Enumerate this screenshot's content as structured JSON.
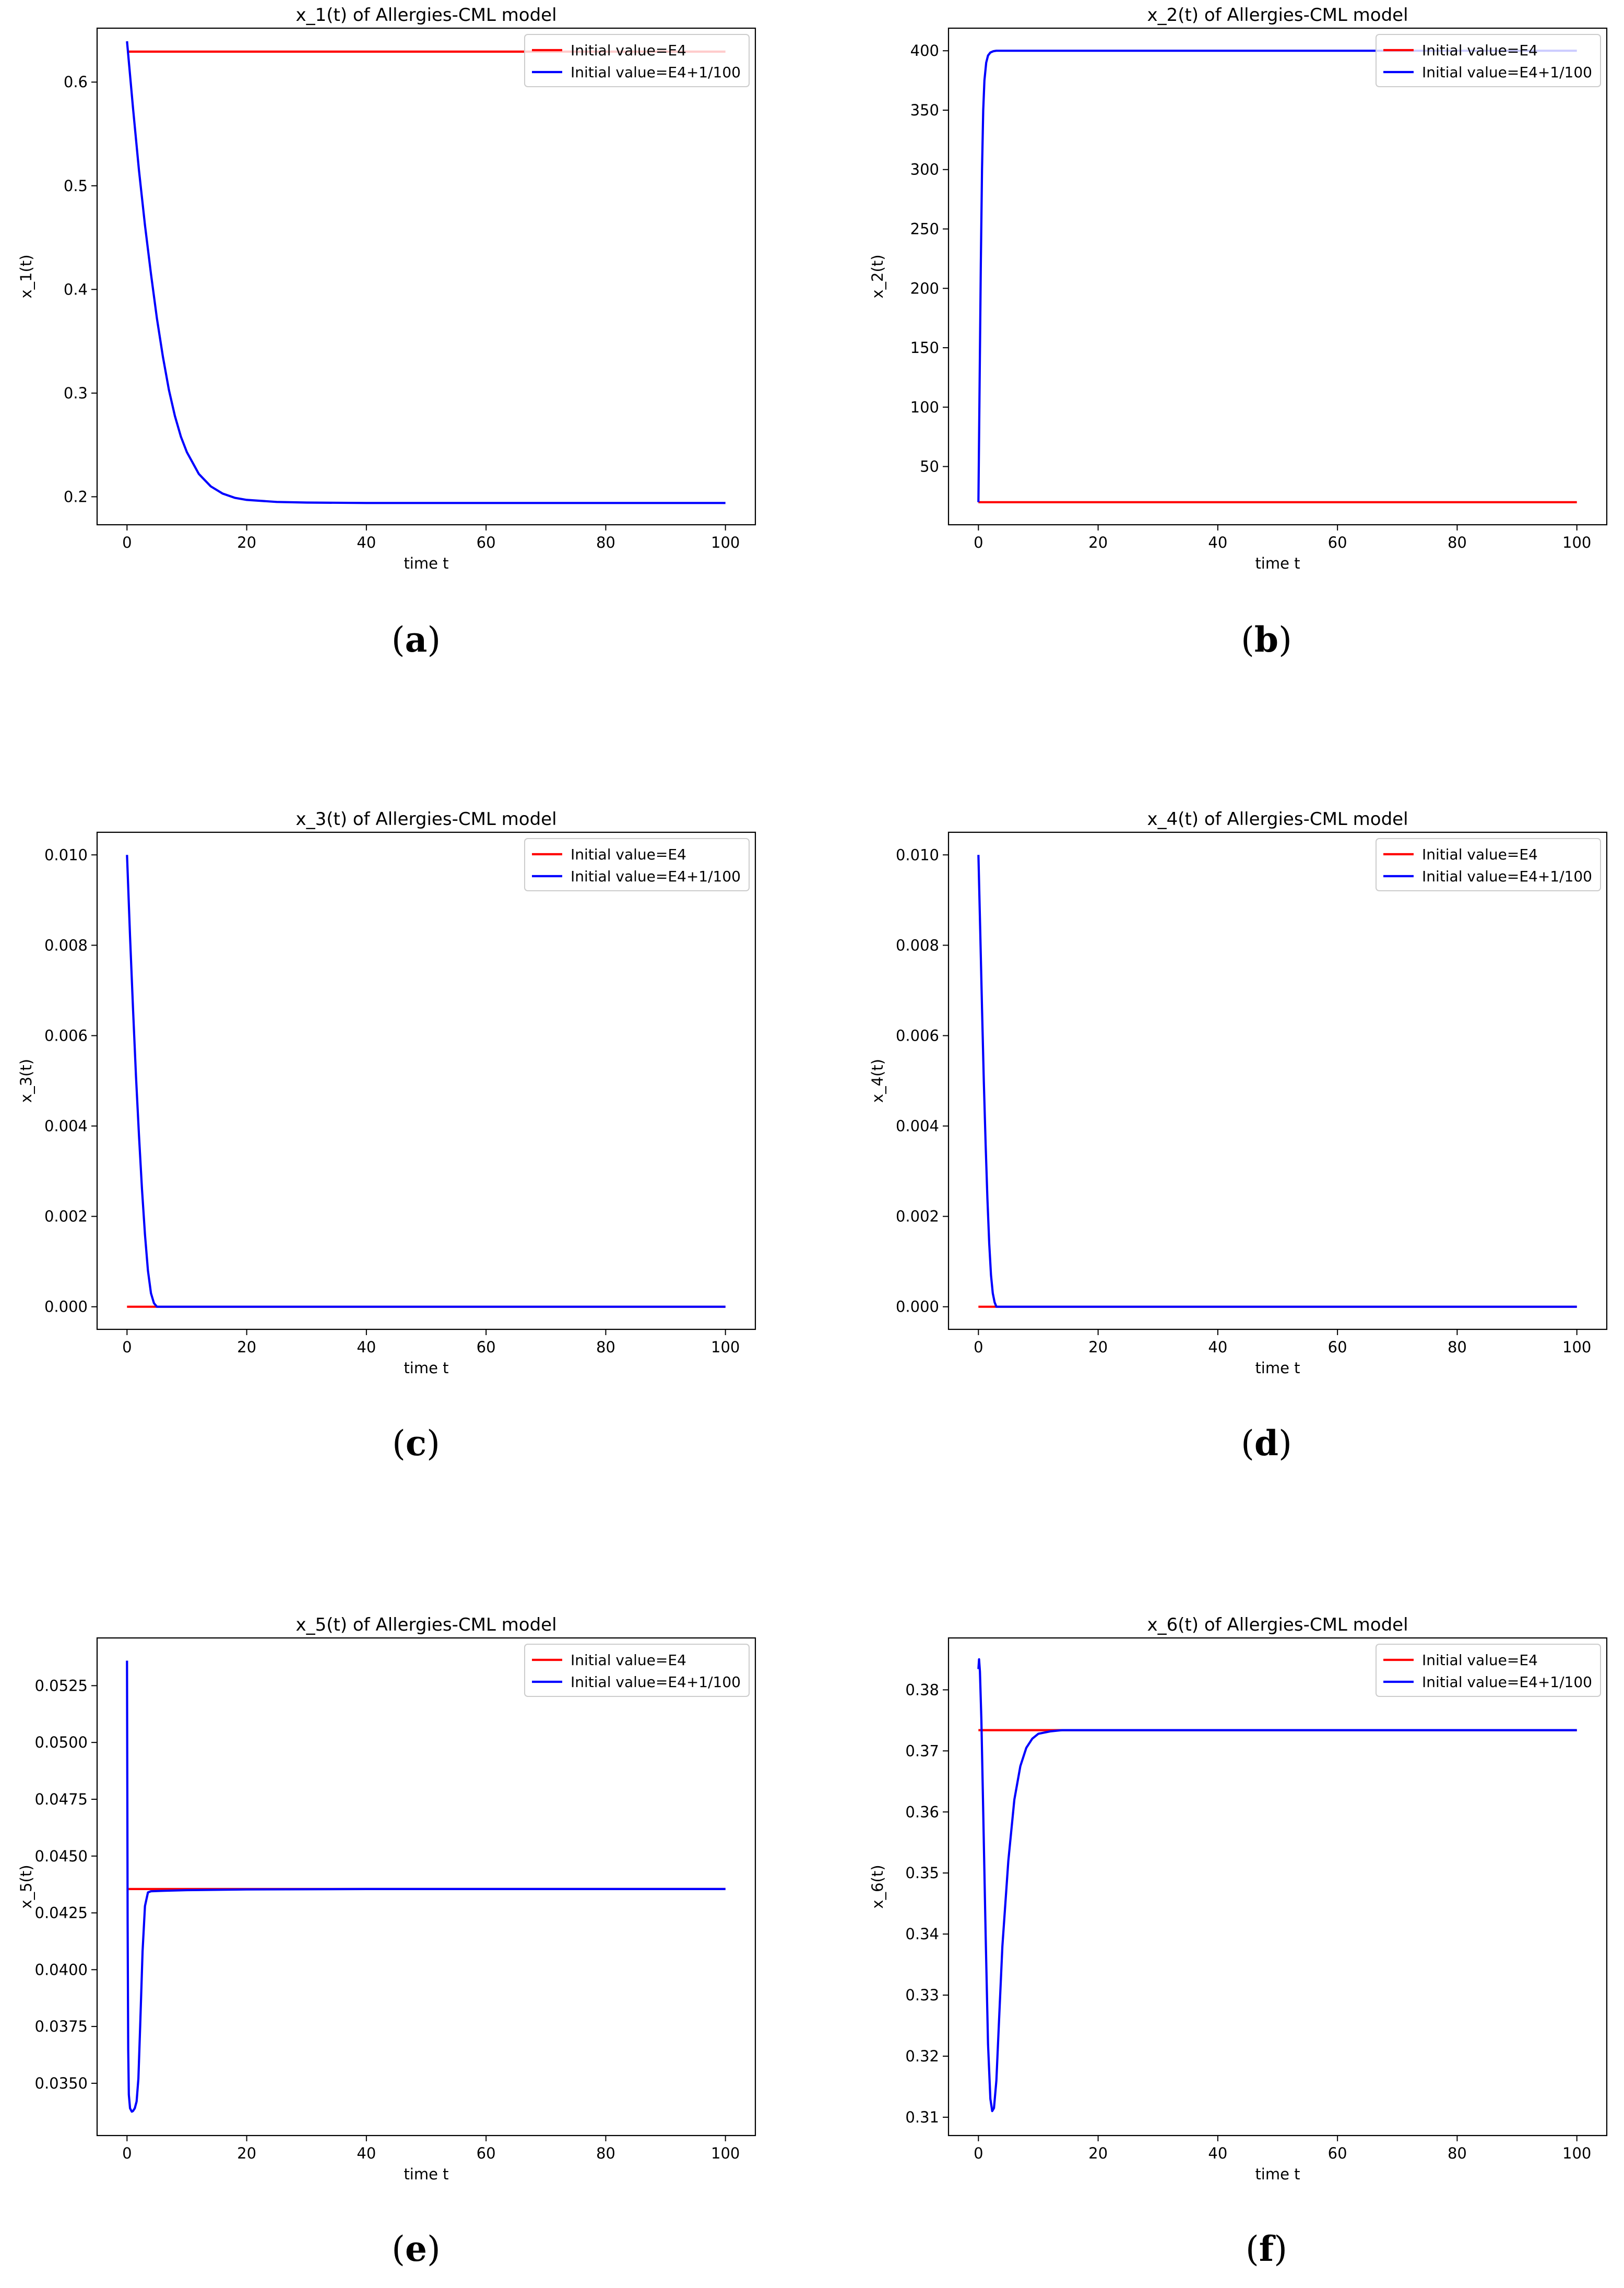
{
  "chart_data": [
    {
      "type": "line",
      "panel": "a",
      "title": "x_1(t) of Allergies-CML model",
      "xlabel": "time t",
      "ylabel": "x_1(t)",
      "xlim": [
        -5,
        105
      ],
      "ylim": [
        0.173,
        0.652
      ],
      "xticks": [
        0,
        20,
        40,
        60,
        80,
        100
      ],
      "yticks": [
        0.2,
        0.3,
        0.4,
        0.5,
        0.6
      ],
      "ytick_labels": [
        "0.2",
        "0.3",
        "0.4",
        "0.5",
        "0.6"
      ],
      "grid": false,
      "legend_position": "top-right",
      "series": [
        {
          "name": "Initial value=E4",
          "color": "#ff0000",
          "x": [
            0,
            100
          ],
          "y": [
            0.6294,
            0.6294
          ]
        },
        {
          "name": "Initial value=E4+1/100",
          "color": "#0000ff",
          "x": [
            0,
            1,
            2,
            3,
            4,
            5,
            6,
            7,
            8,
            9,
            10,
            12,
            14,
            16,
            18,
            20,
            25,
            30,
            40,
            60,
            80,
            100
          ],
          "y": [
            0.6394,
            0.575,
            0.515,
            0.462,
            0.415,
            0.372,
            0.335,
            0.303,
            0.278,
            0.258,
            0.243,
            0.222,
            0.21,
            0.203,
            0.199,
            0.197,
            0.195,
            0.1944,
            0.194,
            0.194,
            0.194,
            0.194
          ]
        }
      ]
    },
    {
      "type": "line",
      "panel": "b",
      "title": "x_2(t) of Allergies-CML model",
      "xlabel": "time t",
      "ylabel": "x_2(t)",
      "xlim": [
        -5,
        105
      ],
      "ylim": [
        1,
        419
      ],
      "xticks": [
        0,
        20,
        40,
        60,
        80,
        100
      ],
      "yticks": [
        50,
        100,
        150,
        200,
        250,
        300,
        350,
        400
      ],
      "ytick_labels": [
        "50",
        "100",
        "150",
        "200",
        "250",
        "300",
        "350",
        "400"
      ],
      "grid": false,
      "legend_position": "top-right",
      "series": [
        {
          "name": "Initial value=E4",
          "color": "#ff0000",
          "x": [
            0,
            100
          ],
          "y": [
            20,
            20
          ]
        },
        {
          "name": "Initial value=E4+1/100",
          "color": "#0000ff",
          "x": [
            0,
            0.2,
            0.4,
            0.6,
            0.8,
            1.0,
            1.3,
            1.6,
            2.0,
            2.5,
            3,
            4,
            6,
            100
          ],
          "y": [
            20,
            120,
            220,
            300,
            350,
            375,
            390,
            396,
            398.5,
            399.6,
            400,
            400,
            400,
            400
          ]
        }
      ]
    },
    {
      "type": "line",
      "panel": "c",
      "title": "x_3(t) of Allergies-CML model",
      "xlabel": "time t",
      "ylabel": "x_3(t)",
      "xlim": [
        -5,
        105
      ],
      "ylim": [
        -0.0005,
        0.0105
      ],
      "xticks": [
        0,
        20,
        40,
        60,
        80,
        100
      ],
      "yticks": [
        0,
        0.002,
        0.004,
        0.006,
        0.008,
        0.01
      ],
      "ytick_labels": [
        "0.000",
        "0.002",
        "0.004",
        "0.006",
        "0.008",
        "0.010"
      ],
      "grid": false,
      "legend_position": "top-right",
      "series": [
        {
          "name": "Initial value=E4",
          "color": "#ff0000",
          "x": [
            0,
            100
          ],
          "y": [
            0,
            0
          ]
        },
        {
          "name": "Initial value=E4+1/100",
          "color": "#0000ff",
          "x": [
            0,
            0.5,
            1,
            1.5,
            2,
            2.5,
            3,
            3.5,
            4,
            4.5,
            5,
            6,
            100
          ],
          "y": [
            0.01,
            0.0082,
            0.0066,
            0.0051,
            0.0038,
            0.0026,
            0.0016,
            0.0008,
            0.0003,
            8e-05,
            0,
            0,
            0
          ]
        }
      ]
    },
    {
      "type": "line",
      "panel": "d",
      "title": "x_4(t) of Allergies-CML model",
      "xlabel": "time t",
      "ylabel": "x_4(t)",
      "xlim": [
        -5,
        105
      ],
      "ylim": [
        -0.0005,
        0.0105
      ],
      "xticks": [
        0,
        20,
        40,
        60,
        80,
        100
      ],
      "yticks": [
        0,
        0.002,
        0.004,
        0.006,
        0.008,
        0.01
      ],
      "ytick_labels": [
        "0.000",
        "0.002",
        "0.004",
        "0.006",
        "0.008",
        "0.010"
      ],
      "grid": false,
      "legend_position": "top-right",
      "series": [
        {
          "name": "Initial value=E4",
          "color": "#ff0000",
          "x": [
            0,
            100
          ],
          "y": [
            0,
            0
          ]
        },
        {
          "name": "Initial value=E4+1/100",
          "color": "#0000ff",
          "x": [
            0,
            0.3,
            0.6,
            0.9,
            1.2,
            1.5,
            1.8,
            2.1,
            2.4,
            2.7,
            3,
            4,
            100
          ],
          "y": [
            0.01,
            0.0083,
            0.0066,
            0.005,
            0.0036,
            0.0024,
            0.0014,
            0.0007,
            0.0003,
            0.0001,
            0,
            0,
            0
          ]
        }
      ]
    },
    {
      "type": "line",
      "panel": "e",
      "title": "x_5(t) of Allergies-CML model",
      "xlabel": "time t",
      "ylabel": "x_5(t)",
      "xlim": [
        -5,
        105
      ],
      "ylim": [
        0.0327,
        0.0546
      ],
      "xticks": [
        0,
        20,
        40,
        60,
        80,
        100
      ],
      "yticks": [
        0.035,
        0.0375,
        0.04,
        0.0425,
        0.045,
        0.0475,
        0.05,
        0.0525
      ],
      "ytick_labels": [
        "0.0350",
        "0.0375",
        "0.0400",
        "0.0425",
        "0.0450",
        "0.0475",
        "0.0500",
        "0.0525"
      ],
      "grid": false,
      "legend_position": "top-right",
      "series": [
        {
          "name": "Initial value=E4",
          "color": "#ff0000",
          "x": [
            0,
            100
          ],
          "y": [
            0.04355,
            0.04355
          ]
        },
        {
          "name": "Initial value=E4+1/100",
          "color": "#0000ff",
          "x": [
            0,
            0.05,
            0.1,
            0.2,
            0.3,
            0.5,
            0.8,
            1.0,
            1.3,
            1.6,
            1.9,
            2.2,
            2.6,
            3.0,
            3.5,
            4,
            6,
            10,
            20,
            40,
            100
          ],
          "y": [
            0.0536,
            0.048,
            0.042,
            0.0365,
            0.0345,
            0.0339,
            0.03375,
            0.03378,
            0.0339,
            0.0342,
            0.0352,
            0.0375,
            0.0408,
            0.0428,
            0.0434,
            0.04345,
            0.04347,
            0.0435,
            0.04353,
            0.04355,
            0.04355
          ]
        }
      ]
    },
    {
      "type": "line",
      "panel": "f",
      "title": "x_6(t) of Allergies-CML model",
      "xlabel": "time t",
      "ylabel": "x_6(t)",
      "xlim": [
        -5,
        105
      ],
      "ylim": [
        0.307,
        0.3885
      ],
      "xticks": [
        0,
        20,
        40,
        60,
        80,
        100
      ],
      "yticks": [
        0.31,
        0.32,
        0.33,
        0.34,
        0.35,
        0.36,
        0.37,
        0.38
      ],
      "ytick_labels": [
        "0.31",
        "0.32",
        "0.33",
        "0.34",
        "0.35",
        "0.36",
        "0.37",
        "0.38"
      ],
      "grid": false,
      "legend_position": "top-right",
      "series": [
        {
          "name": "Initial value=E4",
          "color": "#ff0000",
          "x": [
            0,
            100
          ],
          "y": [
            0.3734,
            0.3734
          ]
        },
        {
          "name": "Initial value=E4+1/100",
          "color": "#0000ff",
          "x": [
            0,
            0.1,
            0.25,
            0.5,
            0.8,
            1.2,
            1.6,
            2.0,
            2.3,
            2.6,
            3.0,
            3.5,
            4,
            5,
            6,
            7,
            8,
            9,
            10,
            12,
            14,
            20,
            100
          ],
          "y": [
            0.3834,
            0.385,
            0.383,
            0.375,
            0.36,
            0.34,
            0.322,
            0.313,
            0.311,
            0.3115,
            0.316,
            0.327,
            0.338,
            0.352,
            0.362,
            0.3675,
            0.3705,
            0.372,
            0.3728,
            0.3732,
            0.3734,
            0.3734,
            0.3734
          ]
        }
      ]
    }
  ],
  "captions": [
    "(a)",
    "(b)",
    "(c)",
    "(d)",
    "(e)",
    "(f)"
  ]
}
